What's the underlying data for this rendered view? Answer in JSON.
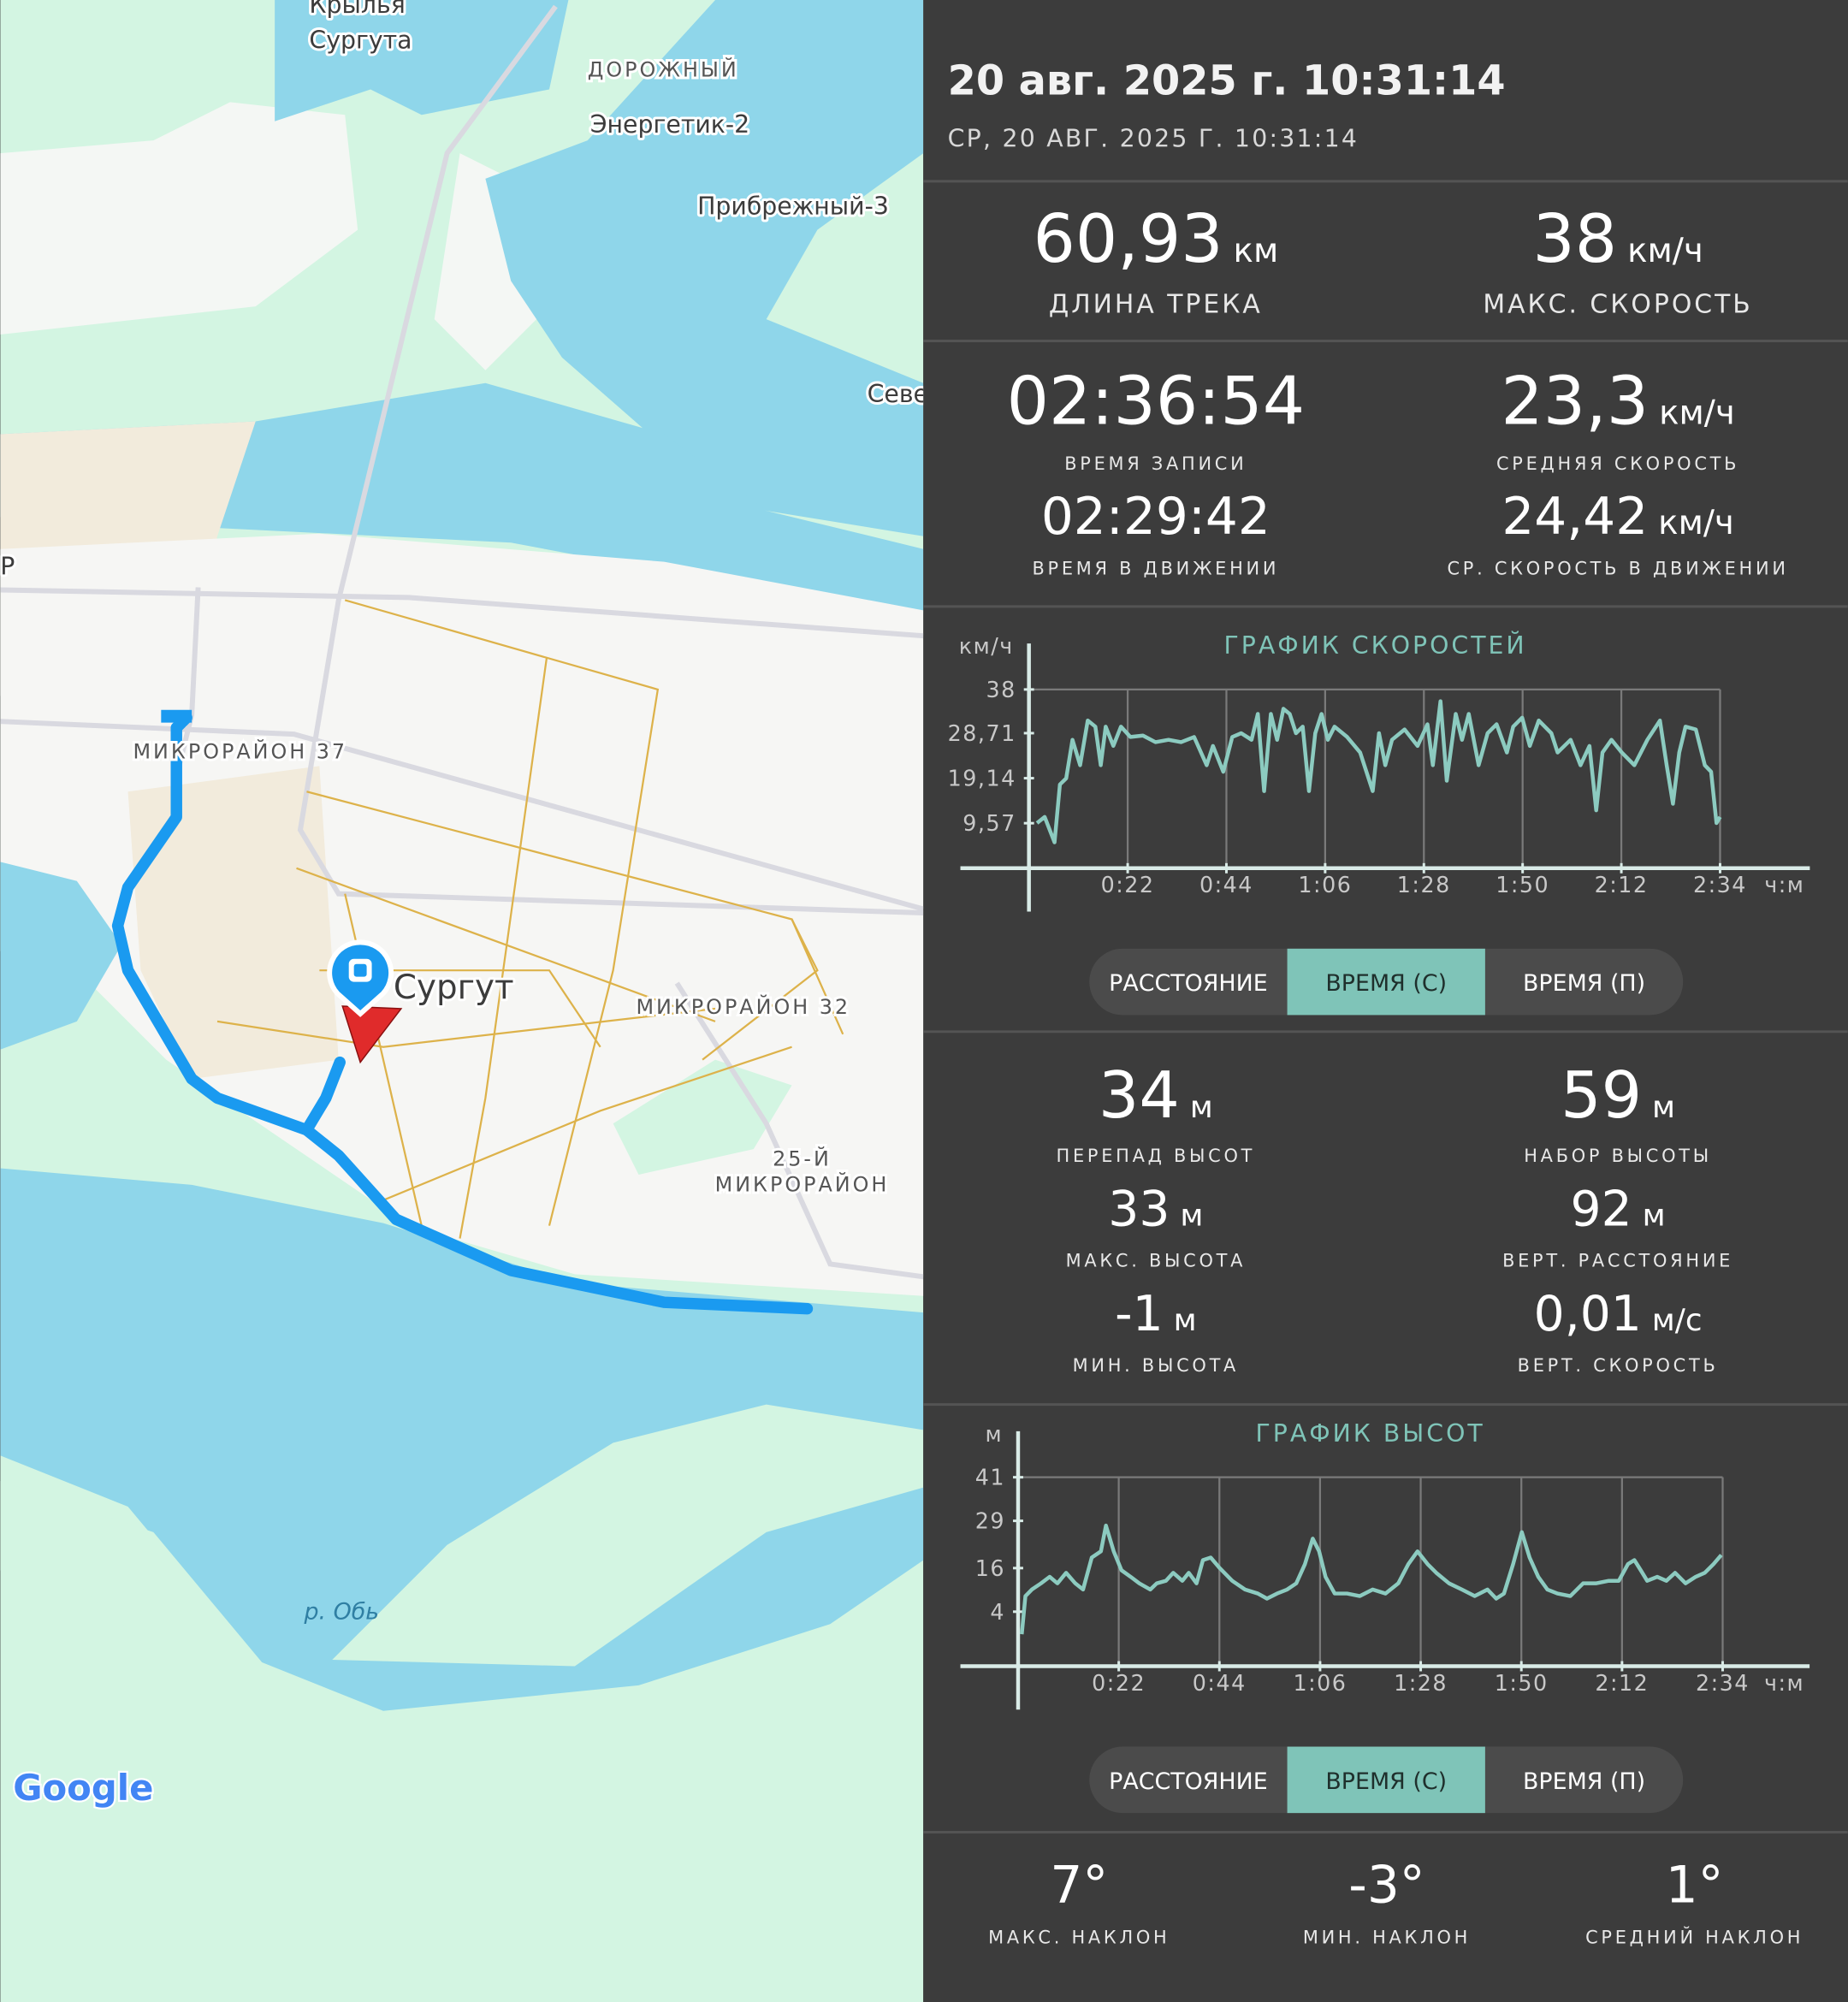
{
  "map_labels": [
    "Крылья",
    "Сургута",
    "ДОРОЖНЫЙ",
    "Энергетик-2",
    "Прибрежный-3",
    "Севе",
    "Р",
    "МИКРОРАЙОН 37",
    "Сургут",
    "МИКРОРАЙОН 32",
    "25-Й",
    "МИКРОРАЙОН",
    "р. Обь",
    "Google"
  ],
  "header": {
    "date": "20 авг. 2025 г. 10:31:14",
    "subdate": "СР, 20 АВГ. 2025 Г. 10:31:14"
  },
  "stats": [
    {
      "value": "60,93",
      "unit": "км",
      "label": "ДЛИНА ТРЕКА"
    },
    {
      "value": "38",
      "unit": "км/ч",
      "label": "МАКС. СКОРОСТЬ"
    },
    {
      "value": "02:36:54",
      "label": "ВРЕМЯ ЗАПИСИ"
    },
    {
      "value": "23,3",
      "unit": "км/ч",
      "label": "СРЕДНЯЯ СКОРОСТЬ"
    },
    {
      "value": "02:29:42",
      "label": "ВРЕМЯ В ДВИЖЕНИИ"
    },
    {
      "value": "24,42",
      "unit": "км/ч",
      "label": "СР. СКОРОСТЬ В ДВИЖЕНИИ"
    }
  ],
  "elevation_stats": [
    {
      "value": "34",
      "unit": "м",
      "label": "ПЕРЕПАД ВЫСОТ"
    },
    {
      "value": "59",
      "unit": "м",
      "label": "НАБОР ВЫСОТЫ"
    },
    {
      "value": "33",
      "unit": "м",
      "label": "МАКС. ВЫСОТА"
    },
    {
      "value": "92",
      "unit": "м",
      "label": "ВЕРТ. РАССТОЯНИЕ"
    },
    {
      "value": "-1",
      "unit": "м",
      "label": "МИН. ВЫСОТА"
    },
    {
      "value": "0,01",
      "unit": "м/с",
      "label": "ВЕРТ. СКОРОСТЬ"
    }
  ],
  "slope_stats": [
    {
      "value": "7°",
      "label": "МАКС. НАКЛОН"
    },
    {
      "value": "-3°",
      "label": "МИН. НАКЛОН"
    },
    {
      "value": "1°",
      "label": "СРЕДНИЙ НАКЛОН"
    }
  ],
  "toggles": [
    {
      "options": [
        "РАССТОЯНИЕ",
        "ВРЕМЯ (С)",
        "ВРЕМЯ (П)"
      ],
      "selected": 1
    },
    {
      "options": [
        "РАССТОЯНИЕ",
        "ВРЕМЯ (С)",
        "ВРЕМЯ (П)"
      ],
      "selected": 1
    }
  ],
  "chart_data": [
    {
      "type": "line",
      "title": "ГРАФИК СКОРОСТЕЙ",
      "y_label": "км/ч",
      "x_label": "ч:м",
      "color": "#8ccbc0",
      "grid": true,
      "xlim": [
        0,
        174
      ],
      "ylim": [
        0,
        38
      ],
      "xticks": [
        {
          "value": 22,
          "label": "0:22"
        },
        {
          "value": 44,
          "label": "0:44"
        },
        {
          "value": 66,
          "label": "1:06"
        },
        {
          "value": 88,
          "label": "1:28"
        },
        {
          "value": 110,
          "label": "1:50"
        },
        {
          "value": 132,
          "label": "2:12"
        },
        {
          "value": 154,
          "label": "2:34"
        }
      ],
      "yticks": [
        38,
        {
          "value": 28.71,
          "label": "28,71"
        },
        {
          "value": 19.14,
          "label": "19,14"
        },
        {
          "value": 9.57,
          "label": "9,57"
        }
      ],
      "x": [
        1.8,
        3.5,
        5.7,
        6.9,
        8.3,
        9.7,
        11.4,
        13.1,
        14.8,
        16.0,
        17.1,
        18.8,
        20.5,
        22.6,
        25.4,
        28.2,
        31.1,
        33.9,
        36.8,
        39.6,
        41.0,
        43.3,
        45.3,
        47.3,
        49.6,
        51.0,
        52.4,
        53.9,
        55.3,
        56.7,
        58.1,
        59.5,
        61.0,
        62.4,
        63.8,
        65.2,
        66.6,
        68.1,
        70.9,
        73.8,
        76.6,
        78.0,
        79.4,
        80.9,
        83.7,
        86.6,
        88.8,
        90.0,
        91.7,
        93.1,
        95.1,
        96.5,
        98.0,
        100.2,
        102.2,
        104.2,
        106.5,
        107.9,
        109.9,
        111.6,
        113.6,
        116.4,
        117.8,
        120.7,
        122.9,
        124.9,
        126.4,
        127.8,
        129.8,
        132.1,
        134.9,
        137.8,
        140.6,
        142.1,
        143.5,
        144.9,
        146.3,
        148.6,
        150.6,
        152.0,
        153.2,
        154.0
      ],
      "values": [
        9.6,
        10.9,
        5.5,
        17.8,
        19.1,
        27.3,
        21.9,
        31.4,
        30.1,
        21.9,
        30.1,
        26.0,
        30.1,
        27.9,
        28.2,
        26.8,
        27.3,
        26.8,
        27.9,
        21.9,
        26.0,
        20.5,
        27.9,
        28.7,
        27.3,
        32.8,
        16.4,
        32.8,
        27.3,
        33.9,
        32.8,
        28.7,
        30.1,
        16.4,
        28.7,
        32.8,
        27.3,
        30.1,
        27.9,
        24.6,
        16.4,
        28.7,
        21.9,
        27.3,
        29.5,
        26.0,
        30.6,
        21.9,
        35.5,
        18.6,
        32.8,
        27.3,
        32.8,
        21.9,
        28.7,
        30.6,
        24.6,
        30.1,
        32.0,
        26.0,
        31.4,
        28.7,
        24.6,
        27.3,
        21.9,
        26.0,
        12.3,
        24.6,
        27.3,
        24.6,
        21.9,
        27.3,
        31.4,
        21.9,
        13.7,
        24.6,
        30.1,
        29.5,
        21.9,
        20.5,
        9.6,
        10.9
      ]
    },
    {
      "type": "line",
      "title": "ГРАФИК ВЫСОТ",
      "y_label": "м",
      "x_label": "ч:м",
      "color": "#8ccbc0",
      "grid": true,
      "xlim": [
        0,
        173
      ],
      "ylim": [
        -11,
        41
      ],
      "xticks": [
        {
          "value": 22,
          "label": "0:22"
        },
        {
          "value": 44,
          "label": "0:44"
        },
        {
          "value": 66,
          "label": "1:06"
        },
        {
          "value": 88,
          "label": "1:28"
        },
        {
          "value": 110,
          "label": "1:50"
        },
        {
          "value": 132,
          "label": "2:12"
        },
        {
          "value": 154,
          "label": "2:34"
        }
      ],
      "yticks": [
        41,
        29,
        16,
        4
      ],
      "x": [
        0.8,
        1.6,
        3.0,
        5.0,
        6.9,
        8.6,
        10.5,
        12.5,
        14.2,
        16.1,
        18.1,
        19.2,
        20.9,
        22.6,
        24.6,
        26.5,
        28.9,
        30.3,
        32.3,
        33.9,
        35.9,
        37.3,
        39.0,
        40.4,
        42.1,
        44.0,
        46.8,
        49.6,
        52.4,
        54.4,
        56.6,
        58.8,
        60.8,
        62.7,
        64.4,
        65.8,
        67.2,
        69.2,
        71.9,
        74.7,
        77.5,
        80.3,
        83.1,
        85.3,
        87.3,
        89.5,
        91.4,
        94.2,
        97.0,
        99.8,
        102.6,
        104.5,
        106.2,
        108.2,
        110.1,
        111.8,
        113.7,
        115.7,
        117.9,
        120.7,
        123.5,
        126.3,
        129.1,
        131.3,
        133.3,
        134.7,
        136.1,
        137.5,
        139.7,
        141.7,
        143.6,
        145.9,
        148.1,
        150.1,
        152.0,
        153.7
      ],
      "values": [
        -2.2,
        8.3,
        10.1,
        11.8,
        13.6,
        11.8,
        14.7,
        11.8,
        10.1,
        18.9,
        20.6,
        27.7,
        20.6,
        15.4,
        13.6,
        11.8,
        10.1,
        11.8,
        12.5,
        14.7,
        12.5,
        14.7,
        11.8,
        18.2,
        18.9,
        16.1,
        12.5,
        10.1,
        9.0,
        7.6,
        9.0,
        10.1,
        11.8,
        17.1,
        24.1,
        20.6,
        13.6,
        9.0,
        9.0,
        8.3,
        10.1,
        9.0,
        11.8,
        17.1,
        20.6,
        17.1,
        14.7,
        11.8,
        10.1,
        8.3,
        10.1,
        7.6,
        9.0,
        17.1,
        25.9,
        18.9,
        13.6,
        10.1,
        9.0,
        8.3,
        11.8,
        11.8,
        12.5,
        12.5,
        17.1,
        18.2,
        15.4,
        12.5,
        13.6,
        12.5,
        14.7,
        11.8,
        13.6,
        14.7,
        17.1,
        19.6
      ]
    }
  ]
}
